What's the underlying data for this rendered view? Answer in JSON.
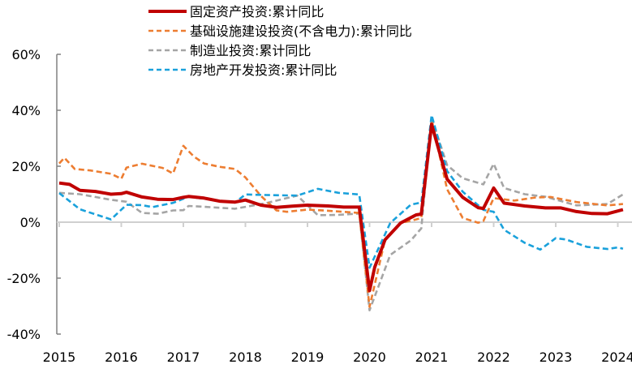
{
  "chart_data": {
    "type": "line",
    "title": "",
    "xlabel": "",
    "ylabel": "",
    "ylim": [
      -40,
      60
    ],
    "yticks": [
      "60%",
      "40%",
      "20%",
      "0%",
      "-20%",
      "-40%"
    ],
    "ytick_values": [
      60,
      40,
      20,
      0,
      -20,
      -40
    ],
    "xticks": [
      "2015",
      "2016",
      "2017",
      "2018",
      "2019",
      "2020",
      "2021",
      "2022",
      "2023",
      "2024"
    ],
    "grid": false,
    "legend_placement": "top",
    "series": [
      {
        "name": "固定资产投资:累计同比",
        "color": "#C00000",
        "style": "solid",
        "x": [
          "2015-02",
          "2015-04",
          "2015-06",
          "2015-09",
          "2015-12",
          "2016-02",
          "2016-03",
          "2016-06",
          "2016-09",
          "2016-12",
          "2017-02",
          "2017-03",
          "2017-06",
          "2017-09",
          "2017-12",
          "2018-02",
          "2018-05",
          "2018-08",
          "2018-11",
          "2019-02",
          "2019-06",
          "2019-09",
          "2019-12",
          "2020-02",
          "2020-03",
          "2020-05",
          "2020-08",
          "2020-11",
          "2020-12",
          "2021-02",
          "2021-05",
          "2021-08",
          "2021-11",
          "2021-12",
          "2022-02",
          "2022-04",
          "2022-08",
          "2022-12",
          "2023-03",
          "2023-06",
          "2023-09",
          "2023-12",
          "2024-03"
        ],
        "y": [
          14,
          13.5,
          11.4,
          11,
          10,
          10.2,
          10.7,
          9,
          8.2,
          8.1,
          8.9,
          9.2,
          8.6,
          7.5,
          7.2,
          7.9,
          6.1,
          5.3,
          5.7,
          6.1,
          5.8,
          5.4,
          5.4,
          -24.5,
          -16.1,
          -6.3,
          -0.3,
          2.6,
          2.9,
          35,
          15.4,
          8.9,
          5.2,
          4.9,
          12.2,
          6.8,
          5.8,
          5.1,
          5.1,
          3.8,
          3.1,
          3.0,
          4.5
        ]
      },
      {
        "name": "基础设施建设投资(不含电力):累计同比",
        "color": "#ED7D31",
        "style": "dash",
        "x": [
          "2015-02",
          "2015-03",
          "2015-05",
          "2015-08",
          "2015-12",
          "2016-02",
          "2016-03",
          "2016-06",
          "2016-10",
          "2016-12",
          "2017-02",
          "2017-04",
          "2017-06",
          "2017-09",
          "2017-12",
          "2018-02",
          "2018-05",
          "2018-08",
          "2018-10",
          "2019-02",
          "2019-06",
          "2019-12",
          "2020-02",
          "2020-05",
          "2020-08",
          "2020-11",
          "2020-12",
          "2021-02",
          "2021-05",
          "2021-08",
          "2021-11",
          "2021-12",
          "2022-02",
          "2022-06",
          "2022-10",
          "2023-01",
          "2023-06",
          "2023-12",
          "2024-03"
        ],
        "y": [
          21,
          23,
          19,
          18.5,
          17.3,
          15.5,
          19.5,
          20.9,
          19.4,
          17.4,
          27.3,
          23.5,
          21,
          19.8,
          19,
          16,
          9.4,
          4.2,
          3.7,
          4.5,
          4.1,
          3.3,
          -30.3,
          -6.3,
          -0.3,
          1.0,
          1.5,
          36.6,
          11.8,
          1.5,
          -0.2,
          0.4,
          8.6,
          7.7,
          8.8,
          9.0,
          7.2,
          6.0,
          6.5
        ]
      },
      {
        "name": "制造业投资:累计同比",
        "color": "#A5A5A5",
        "style": "dash",
        "x": [
          "2015-02",
          "2015-06",
          "2015-12",
          "2016-03",
          "2016-06",
          "2016-09",
          "2016-12",
          "2017-02",
          "2017-03",
          "2017-06",
          "2017-12",
          "2018-06",
          "2018-12",
          "2019-04",
          "2019-08",
          "2019-12",
          "2020-02",
          "2020-06",
          "2020-10",
          "2020-12",
          "2021-02",
          "2021-05",
          "2021-08",
          "2021-12",
          "2022-02",
          "2022-04",
          "2022-08",
          "2022-12",
          "2023-06",
          "2023-12",
          "2024-03"
        ],
        "y": [
          10.5,
          10,
          8,
          7.3,
          3.3,
          3,
          4.2,
          4.3,
          5.8,
          5.5,
          4.8,
          6.8,
          9.5,
          2.5,
          2.6,
          3.1,
          -31.5,
          -11.7,
          -6.5,
          -2.2,
          37.3,
          20.4,
          15.7,
          13.5,
          20.9,
          12.2,
          10,
          9.1,
          6,
          6.5,
          9.9
        ]
      },
      {
        "name": "房地产开发投资:累计同比",
        "color": "#1AA1DB",
        "style": "dash",
        "x": [
          "2015-02",
          "2015-06",
          "2015-12",
          "2016-03",
          "2016-06",
          "2016-08",
          "2016-12",
          "2017-03",
          "2017-08",
          "2017-12",
          "2018-02",
          "2018-06",
          "2018-12",
          "2019-04",
          "2019-08",
          "2019-12",
          "2020-02",
          "2020-06",
          "2020-10",
          "2020-12",
          "2021-02",
          "2021-05",
          "2021-08",
          "2021-12",
          "2022-02",
          "2022-04",
          "2022-08",
          "2022-11",
          "2023-02",
          "2023-04",
          "2023-08",
          "2023-12",
          "2024-02",
          "2024-03"
        ],
        "y": [
          10.4,
          4.6,
          1.0,
          6.2,
          6.1,
          5.4,
          6.9,
          9.1,
          7.9,
          7,
          9.9,
          9.7,
          9.5,
          11.9,
          10.5,
          9.9,
          -16.3,
          -0.3,
          6.3,
          7,
          38.3,
          18.3,
          10.9,
          4.4,
          3.7,
          -2.7,
          -7.4,
          -9.8,
          -5.7,
          -6.2,
          -8.8,
          -9.6,
          -9.0,
          -9.5
        ]
      }
    ]
  }
}
